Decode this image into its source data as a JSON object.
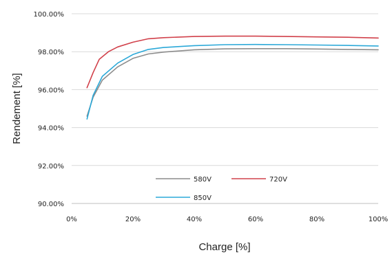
{
  "chart_data": {
    "type": "line",
    "xlabel": "Charge [%]",
    "ylabel": "Rendement [%]",
    "xlim": [
      0,
      100
    ],
    "ylim": [
      90,
      100
    ],
    "x_ticks": [
      "0%",
      "20%",
      "40%",
      "60%",
      "80%",
      "100%"
    ],
    "y_ticks": [
      "90.00%",
      "92.00%",
      "94.00%",
      "96.00%",
      "98.00%",
      "100.00%"
    ],
    "grid": "horizontal",
    "legend_position": "center-bottom",
    "series": [
      {
        "name": "580V",
        "color": "#8c8c8c",
        "points": [
          [
            5,
            94.6
          ],
          [
            7,
            95.6
          ],
          [
            10,
            96.5
          ],
          [
            15,
            97.2
          ],
          [
            20,
            97.65
          ],
          [
            25,
            97.88
          ],
          [
            30,
            97.98
          ],
          [
            40,
            98.1
          ],
          [
            50,
            98.15
          ],
          [
            60,
            98.16
          ],
          [
            70,
            98.16
          ],
          [
            80,
            98.14
          ],
          [
            90,
            98.12
          ],
          [
            100,
            98.1
          ]
        ]
      },
      {
        "name": "720V",
        "color": "#d1404a",
        "points": [
          [
            5,
            96.1
          ],
          [
            7,
            96.9
          ],
          [
            9,
            97.6
          ],
          [
            12,
            98.0
          ],
          [
            15,
            98.25
          ],
          [
            20,
            98.5
          ],
          [
            25,
            98.68
          ],
          [
            30,
            98.74
          ],
          [
            40,
            98.8
          ],
          [
            50,
            98.82
          ],
          [
            60,
            98.82
          ],
          [
            70,
            98.8
          ],
          [
            80,
            98.78
          ],
          [
            90,
            98.76
          ],
          [
            100,
            98.72
          ]
        ]
      },
      {
        "name": "850V",
        "color": "#2aa8d8",
        "points": [
          [
            5,
            94.45
          ],
          [
            7,
            95.7
          ],
          [
            10,
            96.7
          ],
          [
            15,
            97.4
          ],
          [
            20,
            97.85
          ],
          [
            25,
            98.12
          ],
          [
            30,
            98.22
          ],
          [
            40,
            98.32
          ],
          [
            50,
            98.37
          ],
          [
            60,
            98.38
          ],
          [
            70,
            98.37
          ],
          [
            80,
            98.35
          ],
          [
            90,
            98.33
          ],
          [
            100,
            98.3
          ]
        ]
      }
    ]
  }
}
